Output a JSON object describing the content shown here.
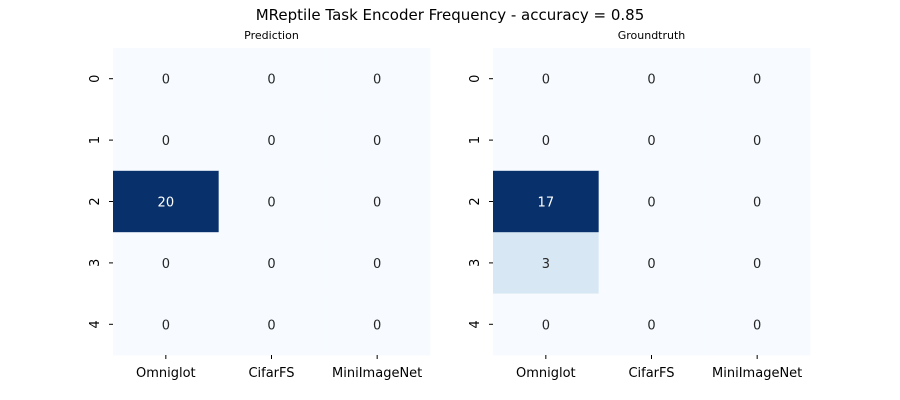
{
  "figure": {
    "title": "MReptile Task Encoder Frequency - accuracy = 0.85"
  },
  "chart_data": [
    {
      "type": "heatmap",
      "title": "Prediction",
      "columns": [
        "Omniglot",
        "CifarFS",
        "MiniImageNet"
      ],
      "rows": [
        "0",
        "1",
        "2",
        "3",
        "4"
      ],
      "values": [
        [
          0,
          0,
          0
        ],
        [
          0,
          0,
          0
        ],
        [
          20,
          0,
          0
        ],
        [
          0,
          0,
          0
        ],
        [
          0,
          0,
          0
        ]
      ],
      "vmin": 0,
      "vmax": 20,
      "colormap": {
        "low": "#f7fbff",
        "mid": "#d3e4f3",
        "high": "#08306b"
      },
      "annotate": true,
      "grid": false
    },
    {
      "type": "heatmap",
      "title": "Groundtruth",
      "columns": [
        "Omniglot",
        "CifarFS",
        "MiniImageNet"
      ],
      "rows": [
        "0",
        "1",
        "2",
        "3",
        "4"
      ],
      "values": [
        [
          0,
          0,
          0
        ],
        [
          0,
          0,
          0
        ],
        [
          17,
          0,
          0
        ],
        [
          3,
          0,
          0
        ],
        [
          0,
          0,
          0
        ]
      ],
      "vmin": 0,
      "vmax": 17,
      "colormap": {
        "low": "#f7fbff",
        "mid": "#d3e4f3",
        "high": "#08306b"
      },
      "annotate": true,
      "grid": false
    }
  ]
}
